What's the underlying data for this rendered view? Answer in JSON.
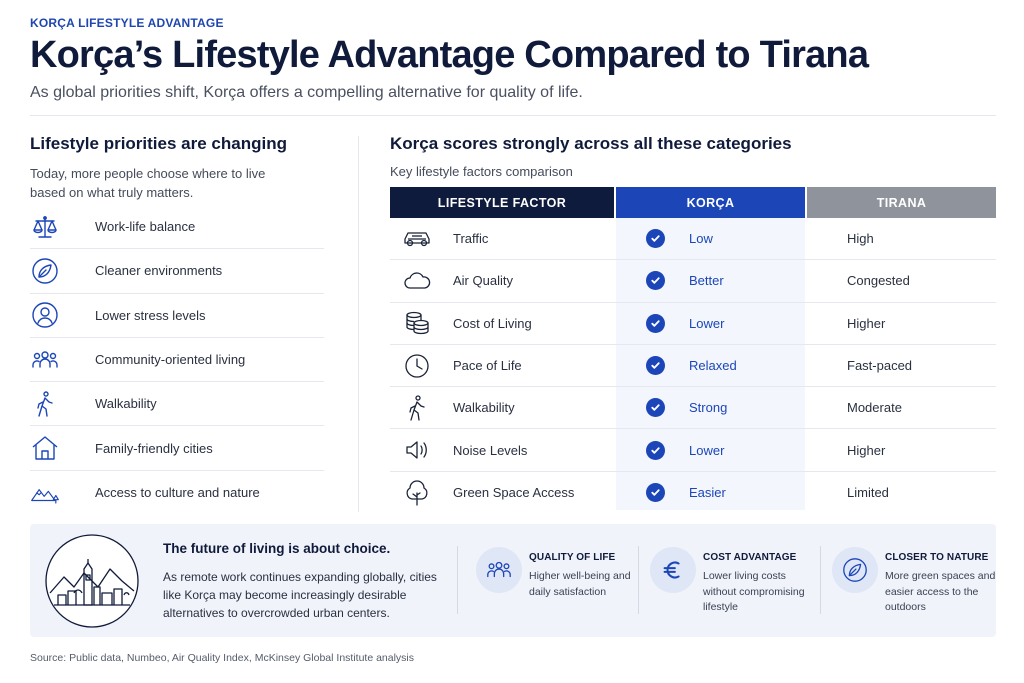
{
  "header": {
    "eyebrow": "KORÇA LIFESTYLE ADVANTAGE",
    "title": "Korça’s Lifestyle Advantage Compared to Tirana",
    "subtitle": "As global priorities shift, Korça offers a compelling alternative for quality of life."
  },
  "left": {
    "heading": "Lifestyle priorities are changing",
    "intro": "Today, more people choose where to live based on what truly matters.",
    "items": [
      {
        "icon": "balance-scale-icon",
        "label": "Work-life balance"
      },
      {
        "icon": "leaf-icon",
        "label": "Cleaner environments"
      },
      {
        "icon": "person-icon",
        "label": "Lower stress levels"
      },
      {
        "icon": "community-icon",
        "label": "Community-oriented living"
      },
      {
        "icon": "walking-icon",
        "label": "Walkability"
      },
      {
        "icon": "house-icon",
        "label": "Family-friendly cities"
      },
      {
        "icon": "mountains-icon",
        "label": "Access to culture and nature"
      }
    ]
  },
  "right": {
    "heading": "Korça scores strongly across all these categories",
    "subheading": "Key lifestyle factors comparison",
    "columns": {
      "factor": "LIFESTYLE FACTOR",
      "korca": "KORÇA",
      "tirana": "TIRANA"
    },
    "rows": [
      {
        "icon": "car-icon",
        "factor": "Traffic",
        "korca": "Low",
        "tirana": "High"
      },
      {
        "icon": "cloud-icon",
        "factor": "Air Quality",
        "korca": "Better",
        "tirana": "Congested"
      },
      {
        "icon": "coins-icon",
        "factor": "Cost of Living",
        "korca": "Lower",
        "tirana": "Higher"
      },
      {
        "icon": "clock-icon",
        "factor": "Pace of Life",
        "korca": "Relaxed",
        "tirana": "Fast-paced"
      },
      {
        "icon": "walking-icon",
        "factor": "Walkability",
        "korca": "Strong",
        "tirana": "Moderate"
      },
      {
        "icon": "speaker-icon",
        "factor": "Noise Levels",
        "korca": "Lower",
        "tirana": "Higher"
      },
      {
        "icon": "tree-icon",
        "factor": "Green Space Access",
        "korca": "Easier",
        "tirana": "Limited"
      }
    ]
  },
  "banner": {
    "title": "The future of living is about choice.",
    "text": "As remote work continues expanding globally, cities like Korça may become increasingly desirable alternatives to overcrowded urban centers.",
    "features": [
      {
        "icon": "community-icon",
        "title": "QUALITY OF LIFE",
        "text": "Higher well-being and daily satisfaction"
      },
      {
        "icon": "euro-icon",
        "title": "COST ADVANTAGE",
        "text": "Lower living costs without compromising lifestyle"
      },
      {
        "icon": "leaf-icon",
        "title": "CLOSER TO NATURE",
        "text": "More green spaces and easier access to the outdoors"
      }
    ]
  },
  "footer": {
    "source": "Source: Public data, Numbeo, Air Quality Index, McKinsey Global Institute analysis"
  },
  "colors": {
    "accent": "#1c46b8",
    "navy": "#0f1b3c",
    "gray_header": "#8f949c",
    "banner_bg": "#f0f3fa"
  }
}
